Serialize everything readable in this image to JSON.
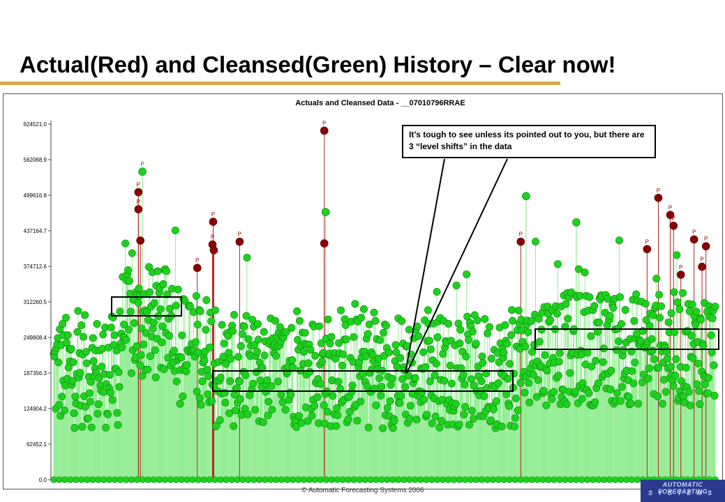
{
  "slide": {
    "title": "Actual(Red) and Cleansed(Green) History – Clear now!",
    "callout": "It’s tough to see unless its pointed out to you, but there are 3 “level shifts” in the data",
    "copyright": "© Automatic Forecasting Systems 2006",
    "logo_line1": "AUTOMATIC FORECASTING",
    "logo_line2": "SYSTEMS"
  },
  "colors": {
    "actual": "#8b0000",
    "cleansed": "#1fd11f",
    "cleansed_stem": "#7fea7f",
    "title_rule": "#d4a84b"
  },
  "chart_data": {
    "type": "scatter",
    "title": "Actuals and Cleansed Data - __07010796RRAE",
    "xlabel": "",
    "ylabel": "",
    "ylim": [
      0,
      624521.0
    ],
    "yticks": [
      "0.0",
      "62452.1",
      "124904.2",
      "187356.3",
      "249808.4",
      "312260.5",
      "374712.6",
      "437164.7",
      "499616.8",
      "562068.9",
      "624521.0"
    ],
    "ytick_values": [
      0,
      62452.1,
      124904.2,
      187356.3,
      249808.4,
      312260.5,
      374712.6,
      437164.7,
      499616.8,
      562068.9,
      624521.0
    ],
    "grid": false,
    "style": "stem",
    "n_points": 980,
    "level_shifts": [
      {
        "segment": 1,
        "start_fraction": 0.1,
        "end_fraction": 0.18,
        "level": 312260.5
      },
      {
        "segment": 2,
        "start_fraction": 0.24,
        "end_fraction": 0.69,
        "level": 175000
      },
      {
        "segment": 3,
        "start_fraction": 0.72,
        "end_fraction": 1.0,
        "level": 240000
      }
    ],
    "series": [
      {
        "name": "Actual",
        "role": "actual",
        "outliers": [
          {
            "x_fraction": 0.128,
            "y": 505000,
            "label": "P"
          },
          {
            "x_fraction": 0.128,
            "y": 475000,
            "label": "P"
          },
          {
            "x_fraction": 0.131,
            "y": 420000,
            "label": ""
          },
          {
            "x_fraction": 0.217,
            "y": 372000,
            "label": "P"
          },
          {
            "x_fraction": 0.241,
            "y": 453000,
            "label": "P"
          },
          {
            "x_fraction": 0.24,
            "y": 413000,
            "label": "P"
          },
          {
            "x_fraction": 0.242,
            "y": 403000,
            "label": ""
          },
          {
            "x_fraction": 0.281,
            "y": 418000,
            "label": "P"
          },
          {
            "x_fraction": 0.409,
            "y": 613000,
            "label": "P"
          },
          {
            "x_fraction": 0.409,
            "y": 415000,
            "label": ""
          },
          {
            "x_fraction": 0.706,
            "y": 418000,
            "label": "P"
          },
          {
            "x_fraction": 0.914,
            "y": 495000,
            "label": "P"
          },
          {
            "x_fraction": 0.897,
            "y": 405000,
            "label": "P"
          },
          {
            "x_fraction": 0.932,
            "y": 465000,
            "label": "P"
          },
          {
            "x_fraction": 0.937,
            "y": 446000,
            "label": "P"
          },
          {
            "x_fraction": 0.948,
            "y": 360000,
            "label": "P"
          },
          {
            "x_fraction": 0.968,
            "y": 422000,
            "label": "P"
          },
          {
            "x_fraction": 0.98,
            "y": 374000,
            "label": "P"
          },
          {
            "x_fraction": 0.986,
            "y": 410000,
            "label": "P"
          }
        ]
      },
      {
        "name": "Cleansed",
        "role": "cleansed",
        "peaks": [
          {
            "x_fraction": 0.134,
            "y": 541000,
            "label": "P"
          },
          {
            "x_fraction": 0.411,
            "y": 470000,
            "label": ""
          },
          {
            "x_fraction": 0.714,
            "y": 498000,
            "label": ""
          },
          {
            "x_fraction": 0.79,
            "y": 452000,
            "label": ""
          }
        ]
      }
    ]
  }
}
